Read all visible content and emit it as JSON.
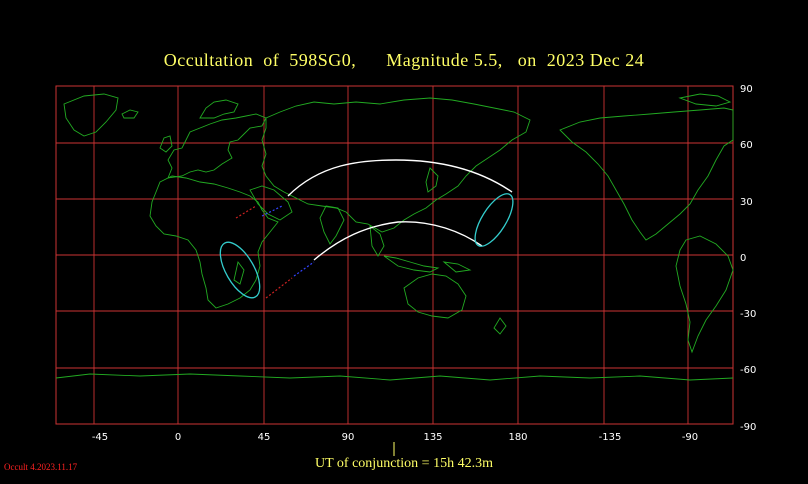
{
  "header": {
    "title": "Occultation  of  598SG0,      Magnitude 5.5,   on  2023 Dec 24"
  },
  "map": {
    "longitude_ticks": [
      "-45",
      "0",
      "45",
      "90",
      "135",
      "180",
      "-135",
      "-90"
    ],
    "latitude_ticks": [
      "90",
      "60",
      "30",
      "0",
      "-30",
      "-60",
      "-90"
    ],
    "colors": {
      "grid": "#cc3333",
      "coastline": "#22aa22",
      "path": "#ffffff",
      "limb_ellipse": "#33cccc",
      "twilight_dash_red": "#cc2222",
      "twilight_dash_blue": "#3344ff",
      "title_text": "#ffff66"
    }
  },
  "footer": {
    "conjunction_label": "UT of conjunction = 15h 42.3m",
    "version": "Occult 4.2023.11.17"
  }
}
